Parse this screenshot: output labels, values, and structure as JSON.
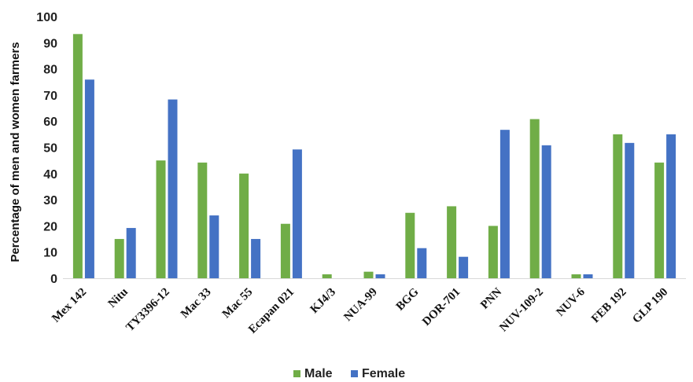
{
  "chart_data": {
    "type": "bar",
    "title": "",
    "xlabel": "",
    "ylabel": "Percentage of men and women farmers",
    "ylim": [
      0,
      100
    ],
    "yticks": [
      0,
      10,
      20,
      30,
      40,
      50,
      60,
      70,
      80,
      90,
      100
    ],
    "grid": false,
    "legend_position": "bottom",
    "categories": [
      "Mex 142",
      "Nitu",
      "TY3396-12",
      "Mac 33",
      "Mac 55",
      "Ecapan 021",
      "KJ4/3",
      "NUA-99",
      "BGG",
      "DOR-701",
      "PNN",
      "NUV-109-2",
      "NUV-6",
      "FEB 192",
      "GLP 190"
    ],
    "series": [
      {
        "name": "Male",
        "color": "#70ad47",
        "values": [
          93.3,
          15,
          45,
          44.2,
          40,
          20.8,
          1.5,
          2.5,
          25,
          27.5,
          20,
          60.8,
          1.5,
          55,
          44.2
        ]
      },
      {
        "name": "Female",
        "color": "#4472c4",
        "values": [
          75.9,
          19.2,
          68.3,
          24,
          15,
          49.2,
          0,
          1.5,
          11.5,
          8.2,
          56.7,
          50.8,
          1.5,
          51.7,
          55
        ]
      }
    ]
  }
}
